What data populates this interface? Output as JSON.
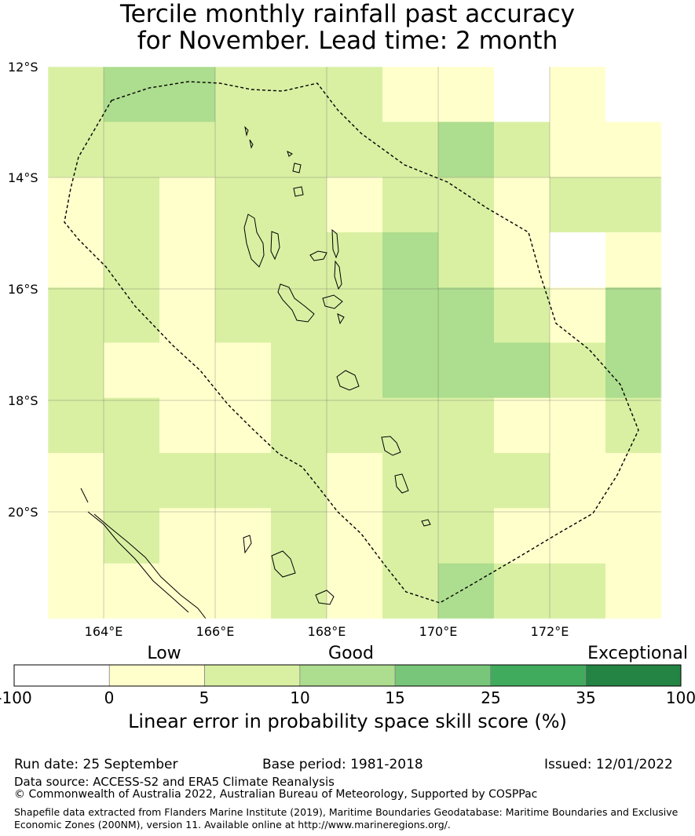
{
  "title": {
    "line1": "Tercile monthly rainfall past accuracy",
    "line2": "for November. Lead time: 2 month"
  },
  "map": {
    "lat_labels": [
      "12°S",
      "14°S",
      "16°S",
      "18°S",
      "20°S"
    ],
    "lon_labels": [
      "164°E",
      "166°E",
      "168°E",
      "170°E",
      "172°E"
    ],
    "extent": {
      "lon_min": 163,
      "lon_max": 174,
      "lat_min": -21.9,
      "lat_max": -12
    },
    "cell_grid": {
      "cols": 11,
      "rows": 10,
      "skill_classes": [
        [
          2,
          3,
          3,
          2,
          2,
          2,
          1,
          1,
          0,
          1,
          0
        ],
        [
          2,
          2,
          2,
          2,
          2,
          2,
          2,
          3,
          2,
          1,
          1
        ],
        [
          1,
          2,
          1,
          2,
          2,
          1,
          2,
          2,
          1,
          2,
          2
        ],
        [
          1,
          2,
          1,
          2,
          2,
          2,
          3,
          2,
          1,
          0,
          1
        ],
        [
          2,
          2,
          1,
          2,
          2,
          2,
          3,
          3,
          2,
          1,
          3
        ],
        [
          2,
          1,
          1,
          1,
          2,
          2,
          3,
          3,
          3,
          2,
          3
        ],
        [
          2,
          2,
          1,
          1,
          2,
          2,
          2,
          2,
          1,
          1,
          2
        ],
        [
          1,
          2,
          2,
          2,
          2,
          1,
          2,
          2,
          2,
          1,
          1
        ],
        [
          1,
          2,
          1,
          1,
          2,
          1,
          2,
          2,
          1,
          1,
          1
        ],
        [
          1,
          1,
          1,
          1,
          2,
          1,
          2,
          3,
          2,
          2,
          1
        ]
      ]
    },
    "colors": {
      "land_outline": "#000000",
      "eez_line": "#000000"
    }
  },
  "colorbar": {
    "categories": [
      "Low",
      "Good",
      "Exceptional"
    ],
    "ticks": [
      "-100",
      "0",
      "5",
      "10",
      "15",
      "25",
      "35",
      "100"
    ],
    "colors": [
      "#ffffff",
      "#ffffcc",
      "#d9f0a3",
      "#addd8e",
      "#78c679",
      "#41ab5d",
      "#238443"
    ],
    "label": "Linear error in probability space skill score (%)"
  },
  "footer": {
    "run_date": "Run date: 25 September",
    "base_period": "Base period: 1981-2018",
    "issued": "Issued: 12/01/2022",
    "data_source": "Data source: ACCESS-S2 and ERA5 Climate Reanalysis",
    "copyright": "© Commonwealth of Australia 2022, Australian Bureau of Meteorology, Supported by COSPPac",
    "shapefile": "Shapefile data extracted from Flanders Marine Institute (2019), Maritime Boundaries Geodatabase: Maritime Boundaries and Exclusive Economic Zones (200NM), version 11. Available online at http://www.marineregions.org/."
  }
}
